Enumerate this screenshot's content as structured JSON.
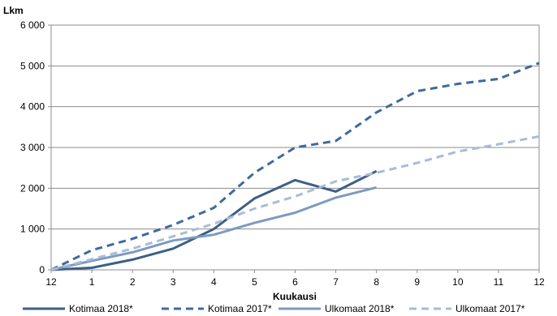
{
  "chart_data": {
    "type": "line",
    "ylabel": "Lkm",
    "xlabel": "Kuukausi",
    "categories": [
      "12",
      "1",
      "2",
      "3",
      "4",
      "5",
      "6",
      "7",
      "8",
      "9",
      "10",
      "11",
      "12"
    ],
    "ylim": [
      0,
      6000
    ],
    "yticks": [
      0,
      1000,
      2000,
      3000,
      4000,
      5000,
      6000
    ],
    "ytick_labels": [
      "0",
      "1 000",
      "2 000",
      "3 000",
      "4 000",
      "5 000",
      "6 000"
    ],
    "grid": true,
    "legend_position": "bottom",
    "series": [
      {
        "name": "Kotimaa 2018*",
        "color": "#3d5f86",
        "dash": "solid",
        "values": [
          0,
          50,
          250,
          520,
          1000,
          1750,
          2200,
          1920,
          2420,
          null,
          null,
          null,
          null
        ]
      },
      {
        "name": "Kotimaa 2017*",
        "color": "#3d6aa0",
        "dash": "dashed",
        "values": [
          0,
          480,
          760,
          1100,
          1520,
          2380,
          3000,
          3160,
          3860,
          4380,
          4560,
          4680,
          5070
        ]
      },
      {
        "name": "Ulkomaat 2018*",
        "color": "#7d9ac1",
        "dash": "solid",
        "values": [
          0,
          220,
          430,
          720,
          860,
          1150,
          1400,
          1770,
          2020,
          null,
          null,
          null,
          null
        ]
      },
      {
        "name": "Ulkomaat 2017*",
        "color": "#a8bcd8",
        "dash": "dashed",
        "values": [
          0,
          260,
          520,
          820,
          1130,
          1500,
          1800,
          2170,
          2380,
          2620,
          2900,
          3080,
          3270
        ]
      }
    ]
  }
}
